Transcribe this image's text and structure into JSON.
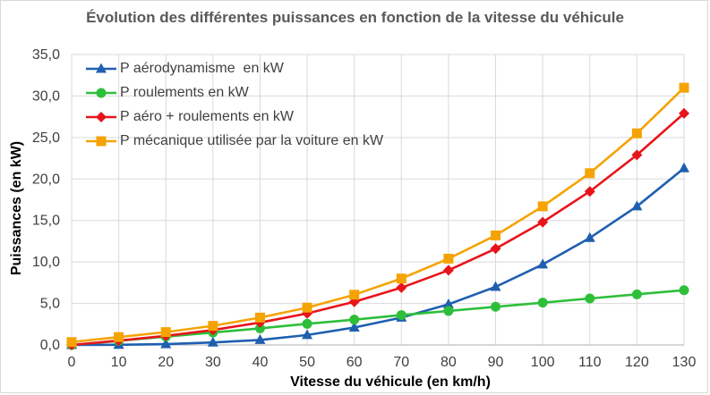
{
  "chart_data": {
    "type": "line",
    "title": "Évolution des différentes puissances en fonction de la vitesse du véhicule",
    "xlabel": "Vitesse du véhicule (en km/h)",
    "ylabel": "Puissances (en kW)",
    "x": [
      0,
      10,
      20,
      30,
      40,
      50,
      60,
      70,
      80,
      90,
      100,
      110,
      120,
      130
    ],
    "x_tick_labels": [
      "0",
      "10",
      "20",
      "30",
      "40",
      "50",
      "60",
      "70",
      "80",
      "90",
      "100",
      "110",
      "120",
      "130"
    ],
    "ylim": [
      0,
      35
    ],
    "y_ticks": [
      0,
      5,
      10,
      15,
      20,
      25,
      30,
      35
    ],
    "y_tick_labels": [
      "0,0",
      "5,0",
      "10,0",
      "15,0",
      "20,0",
      "25,0",
      "30,0",
      "35,0"
    ],
    "grid": true,
    "legend_position": "top-left",
    "series": [
      {
        "name": "P aérodynamisme  en kW",
        "color": "#1f5fb0",
        "marker": "triangle",
        "values": [
          0,
          0.02,
          0.1,
          0.3,
          0.6,
          1.2,
          2.1,
          3.3,
          4.9,
          7.0,
          9.7,
          12.9,
          16.7,
          21.3
        ]
      },
      {
        "name": "P roulements en kW",
        "color": "#2ebf3a",
        "marker": "circle",
        "values": [
          0,
          0.5,
          1.0,
          1.5,
          2.0,
          2.55,
          3.05,
          3.6,
          4.1,
          4.6,
          5.1,
          5.6,
          6.1,
          6.6
        ]
      },
      {
        "name": "P aéro + roulements en kW",
        "color": "#e8141b",
        "marker": "diamond",
        "values": [
          0,
          0.52,
          1.1,
          1.8,
          2.7,
          3.8,
          5.2,
          6.9,
          9.0,
          11.6,
          14.8,
          18.5,
          22.9,
          27.9
        ]
      },
      {
        "name": "P mécanique utilisée par la voiture en kW",
        "color": "#f5a302",
        "marker": "square",
        "values": [
          0.35,
          0.95,
          1.55,
          2.3,
          3.3,
          4.5,
          6.05,
          8.0,
          10.4,
          13.2,
          16.7,
          20.7,
          25.5,
          31.0
        ]
      }
    ]
  }
}
